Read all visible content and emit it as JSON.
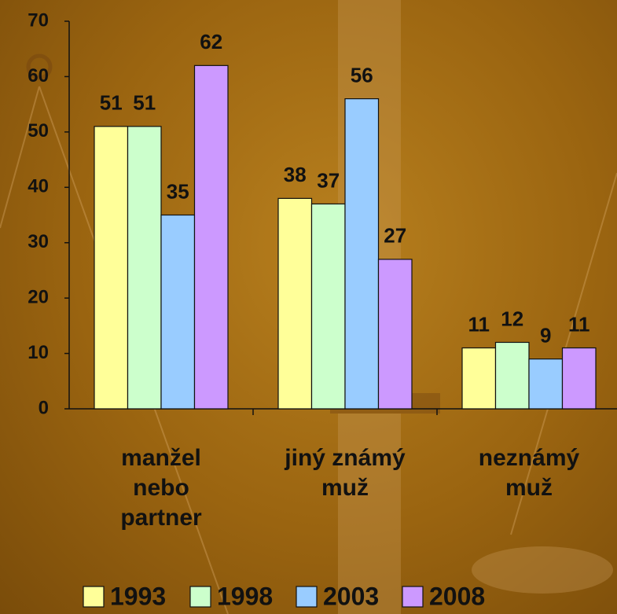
{
  "chart_data": {
    "type": "bar",
    "categories": [
      "manžel nebo partner",
      "jiný známý muž",
      "neznámý muž"
    ],
    "series": [
      {
        "name": "1993",
        "color": "#ffff99",
        "values": [
          51,
          38,
          11
        ]
      },
      {
        "name": "1998",
        "color": "#ccffcc",
        "values": [
          51,
          37,
          12
        ]
      },
      {
        "name": "2003",
        "color": "#99ccff",
        "values": [
          35,
          56,
          9
        ]
      },
      {
        "name": "2008",
        "color": "#cc99ff",
        "values": [
          62,
          27,
          11
        ]
      }
    ],
    "ylim": [
      0,
      70
    ],
    "yticks": [
      0,
      10,
      20,
      30,
      40,
      50,
      60,
      70
    ],
    "legend": "bottom"
  }
}
